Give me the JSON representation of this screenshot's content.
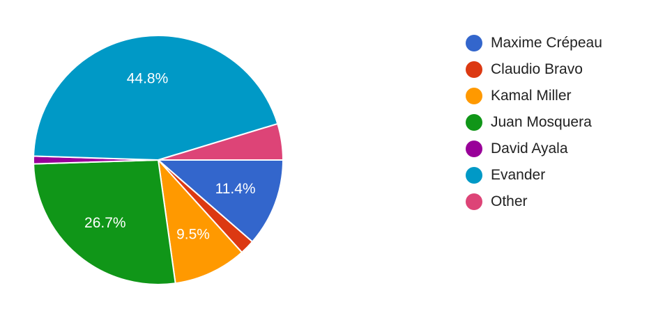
{
  "chart_data": {
    "type": "pie",
    "categories": [
      "Maxime Crépeau",
      "Claudio Bravo",
      "Kamal Miller",
      "Juan Mosquera",
      "David Ayala",
      "Evander",
      "Other"
    ],
    "values": [
      11.4,
      1.9,
      9.5,
      26.7,
      1.0,
      44.8,
      4.7
    ],
    "colors": [
      "#3366cc",
      "#dc3912",
      "#ff9900",
      "#109618",
      "#990099",
      "#0099c6",
      "#dd4477"
    ],
    "data_labels": [
      "11.4%",
      "",
      "9.5%",
      "26.7%",
      "",
      "44.8%",
      ""
    ],
    "legend": {
      "position": "right",
      "entries": [
        "Maxime Crépeau",
        "Claudio Bravo",
        "Kamal Miller",
        "Juan Mosquera",
        "David Ayala",
        "Evander",
        "Other"
      ]
    },
    "title": ""
  }
}
